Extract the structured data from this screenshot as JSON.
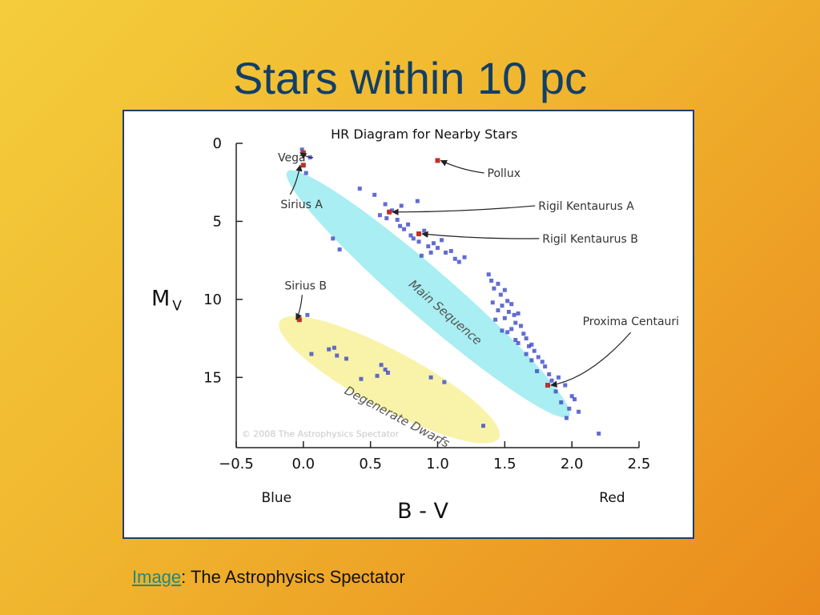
{
  "slide": {
    "title": "Stars within 10 pc",
    "credit_link": "Image",
    "credit_text": ": The Astrophysics Spectator"
  },
  "chart_data": {
    "type": "scatter",
    "title": "HR Diagram for Nearby Stars",
    "xlabel": "B - V",
    "ylabel": "M",
    "ylabel_sub": "V",
    "x_end_labels": {
      "left": "Blue",
      "right": "Red"
    },
    "xlim": [
      -0.5,
      2.5
    ],
    "ylim": [
      0,
      19.5
    ],
    "y_inverted": true,
    "xticks": [
      -0.5,
      0.0,
      0.5,
      1.0,
      1.5,
      2.0,
      2.5
    ],
    "xtick_labels": [
      "−0.5",
      "0.0",
      "0.5",
      "1.0",
      "1.5",
      "2.0",
      "2.5"
    ],
    "yticks": [
      0,
      5,
      10,
      15
    ],
    "grid": false,
    "copyright": "© 2008 The Astrophysics Spectator",
    "regions": [
      {
        "label": "Main Sequence",
        "color": "#a8eef2",
        "cx": 0.93,
        "cy": 9.65,
        "label_x": 0.78,
        "label_y": 9.1
      },
      {
        "label": "Degenerate Dwarfs",
        "color": "#f8f3a8",
        "cx": 0.64,
        "cy": 15.15,
        "label_x": 0.3,
        "label_y": 16.0
      }
    ],
    "named_stars": [
      {
        "name": "Vega",
        "x": 0.0,
        "y": 0.6,
        "label_x": -0.19,
        "label_y": 0.9
      },
      {
        "name": "Sirius A",
        "x": 0.0,
        "y": 1.4,
        "label_x": -0.17,
        "label_y": 3.9
      },
      {
        "name": "Pollux",
        "x": 1.0,
        "y": 1.1,
        "label_x": 1.37,
        "label_y": 1.9
      },
      {
        "name": "Rigil Kentaurus A",
        "x": 0.64,
        "y": 4.4,
        "label_x": 1.75,
        "label_y": 4.0
      },
      {
        "name": "Rigil Kentaurus B",
        "x": 0.86,
        "y": 5.8,
        "label_x": 1.78,
        "label_y": 6.1
      },
      {
        "name": "Sirius B",
        "x": -0.03,
        "y": 11.3,
        "label_x": -0.14,
        "label_y": 9.1
      },
      {
        "name": "Proxima Centauri",
        "x": 1.82,
        "y": 15.5,
        "label_x": 2.08,
        "label_y": 11.4
      }
    ],
    "series": [
      {
        "color": "#3b47c8",
        "points": [
          [
            -0.01,
            0.4
          ],
          [
            0.05,
            0.9
          ],
          [
            0.02,
            1.9
          ],
          [
            0.42,
            2.9
          ],
          [
            0.53,
            3.3
          ],
          [
            0.61,
            3.9
          ],
          [
            0.73,
            4.0
          ],
          [
            0.85,
            3.7
          ],
          [
            0.57,
            4.6
          ],
          [
            0.62,
            4.8
          ],
          [
            0.66,
            4.3
          ],
          [
            0.7,
            4.9
          ],
          [
            0.72,
            5.3
          ],
          [
            0.75,
            5.5
          ],
          [
            0.78,
            5.2
          ],
          [
            0.8,
            5.9
          ],
          [
            0.82,
            6.1
          ],
          [
            0.86,
            6.3
          ],
          [
            0.9,
            5.6
          ],
          [
            0.93,
            6.6
          ],
          [
            0.97,
            6.4
          ],
          [
            1.0,
            6.7
          ],
          [
            1.03,
            6.2
          ],
          [
            1.06,
            7.0
          ],
          [
            1.1,
            6.9
          ],
          [
            1.13,
            7.4
          ],
          [
            1.16,
            7.6
          ],
          [
            0.95,
            7.0
          ],
          [
            0.88,
            7.2
          ],
          [
            1.2,
            7.3
          ],
          [
            0.22,
            6.1
          ],
          [
            0.27,
            6.8
          ],
          [
            1.38,
            8.4
          ],
          [
            1.4,
            8.8
          ],
          [
            1.42,
            9.3
          ],
          [
            1.45,
            9.0
          ],
          [
            1.47,
            9.7
          ],
          [
            1.5,
            9.4
          ],
          [
            1.52,
            10.1
          ],
          [
            1.48,
            10.4
          ],
          [
            1.55,
            10.3
          ],
          [
            1.53,
            10.8
          ],
          [
            1.57,
            11.0
          ],
          [
            1.5,
            11.2
          ],
          [
            1.6,
            10.9
          ],
          [
            1.45,
            10.7
          ],
          [
            1.58,
            11.5
          ],
          [
            1.62,
            11.7
          ],
          [
            1.55,
            11.9
          ],
          [
            1.64,
            12.2
          ],
          [
            1.48,
            12.0
          ],
          [
            1.66,
            12.5
          ],
          [
            1.6,
            12.8
          ],
          [
            1.68,
            13.0
          ],
          [
            1.72,
            13.3
          ],
          [
            1.75,
            13.7
          ],
          [
            1.7,
            13.9
          ],
          [
            1.78,
            14.0
          ],
          [
            1.8,
            14.3
          ],
          [
            1.74,
            14.6
          ],
          [
            1.83,
            14.8
          ],
          [
            1.85,
            15.2
          ],
          [
            1.9,
            15.0
          ],
          [
            1.95,
            15.5
          ],
          [
            1.88,
            15.9
          ],
          [
            2.0,
            16.2
          ],
          [
            1.92,
            16.6
          ],
          [
            1.98,
            17.0
          ],
          [
            2.02,
            16.4
          ],
          [
            2.05,
            17.2
          ],
          [
            1.96,
            17.6
          ],
          [
            2.2,
            18.6
          ],
          [
            1.58,
            12.6
          ],
          [
            1.52,
            12.1
          ],
          [
            1.43,
            11.3
          ],
          [
            1.41,
            10.2
          ],
          [
            1.66,
            13.5
          ],
          [
            1.7,
            12.9
          ],
          [
            0.03,
            11.0
          ],
          [
            0.06,
            13.5
          ],
          [
            0.19,
            13.2
          ],
          [
            0.23,
            13.1
          ],
          [
            0.25,
            13.6
          ],
          [
            0.32,
            13.8
          ],
          [
            0.43,
            15.1
          ],
          [
            0.55,
            14.9
          ],
          [
            0.58,
            14.2
          ],
          [
            0.61,
            14.5
          ],
          [
            0.63,
            14.7
          ],
          [
            0.95,
            15.0
          ],
          [
            1.05,
            15.3
          ],
          [
            1.34,
            18.1
          ]
        ]
      },
      {
        "color": "#c0302a",
        "points": [
          [
            0.0,
            0.6
          ],
          [
            0.0,
            1.4
          ],
          [
            1.0,
            1.1
          ],
          [
            0.64,
            4.4
          ],
          [
            0.86,
            5.8
          ],
          [
            -0.03,
            11.3
          ],
          [
            1.82,
            15.5
          ]
        ]
      }
    ]
  }
}
